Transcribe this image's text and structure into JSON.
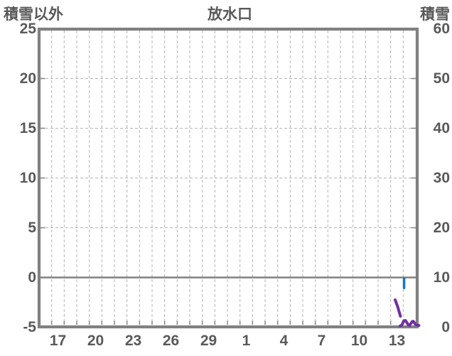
{
  "header": {
    "left_axis_title": "積雪以外",
    "chart_title": "放水口",
    "right_axis_title": "積雪"
  },
  "colors": {
    "text": "#595959",
    "frame": "#808080",
    "grid": "#b5b5b5",
    "zero_line": "#808080",
    "series_blue": "#1878be",
    "series_purple": "#7030a0"
  },
  "chart_data": {
    "type": "line",
    "title": "放水口",
    "left_axis": {
      "title": "積雪以外",
      "min": -5,
      "max": 25,
      "step": 5,
      "ticks": [
        25,
        20,
        15,
        10,
        5,
        0,
        -5
      ],
      "gridline_values": [
        20,
        15,
        10,
        5
      ],
      "zero_line_value": 0
    },
    "right_axis": {
      "title": "積雪",
      "min": 0,
      "max": 60,
      "step": 10,
      "ticks": [
        60,
        50,
        40,
        30,
        20,
        10,
        0
      ],
      "side_tick_values": [
        50,
        40,
        30,
        20,
        10
      ]
    },
    "x_axis": {
      "range": [
        0,
        30
      ],
      "gridline_every_days": 1,
      "tick_positions": [
        1.5,
        4.5,
        7.5,
        10.5,
        13.5,
        16.5,
        19.5,
        22.5,
        25.5,
        28.5
      ],
      "tick_labels": [
        "17",
        "20",
        "23",
        "26",
        "29",
        "1",
        "4",
        "7",
        "10",
        "13"
      ]
    },
    "grid": {
      "style": "dashed",
      "zero_line": "solid"
    },
    "series": [
      {
        "name": "積雪以外",
        "axis": "left",
        "color": "#1878be",
        "stroke_width": 3.5,
        "segments": [
          [
            [
              29.07,
              -0.1
            ],
            [
              29.07,
              -1.05
            ]
          ]
        ]
      },
      {
        "name": "積雪",
        "axis": "right",
        "color": "#7030a0",
        "stroke_width": 4,
        "segments": [
          [
            [
              28.36,
              5.5
            ],
            [
              28.55,
              4.2
            ],
            [
              28.78,
              2.2
            ]
          ],
          [
            [
              28.75,
              0.25
            ],
            [
              28.9,
              0.45
            ],
            [
              29.05,
              1.3
            ],
            [
              29.18,
              1.35
            ],
            [
              29.3,
              0.9
            ],
            [
              29.42,
              0.42
            ],
            [
              29.52,
              0.38
            ],
            [
              29.62,
              0.8
            ],
            [
              29.72,
              1.15
            ],
            [
              29.8,
              1.2
            ],
            [
              29.9,
              0.85
            ],
            [
              30.0,
              0.5
            ],
            [
              30.12,
              0.42
            ],
            [
              30.25,
              0.35
            ]
          ]
        ]
      }
    ]
  }
}
